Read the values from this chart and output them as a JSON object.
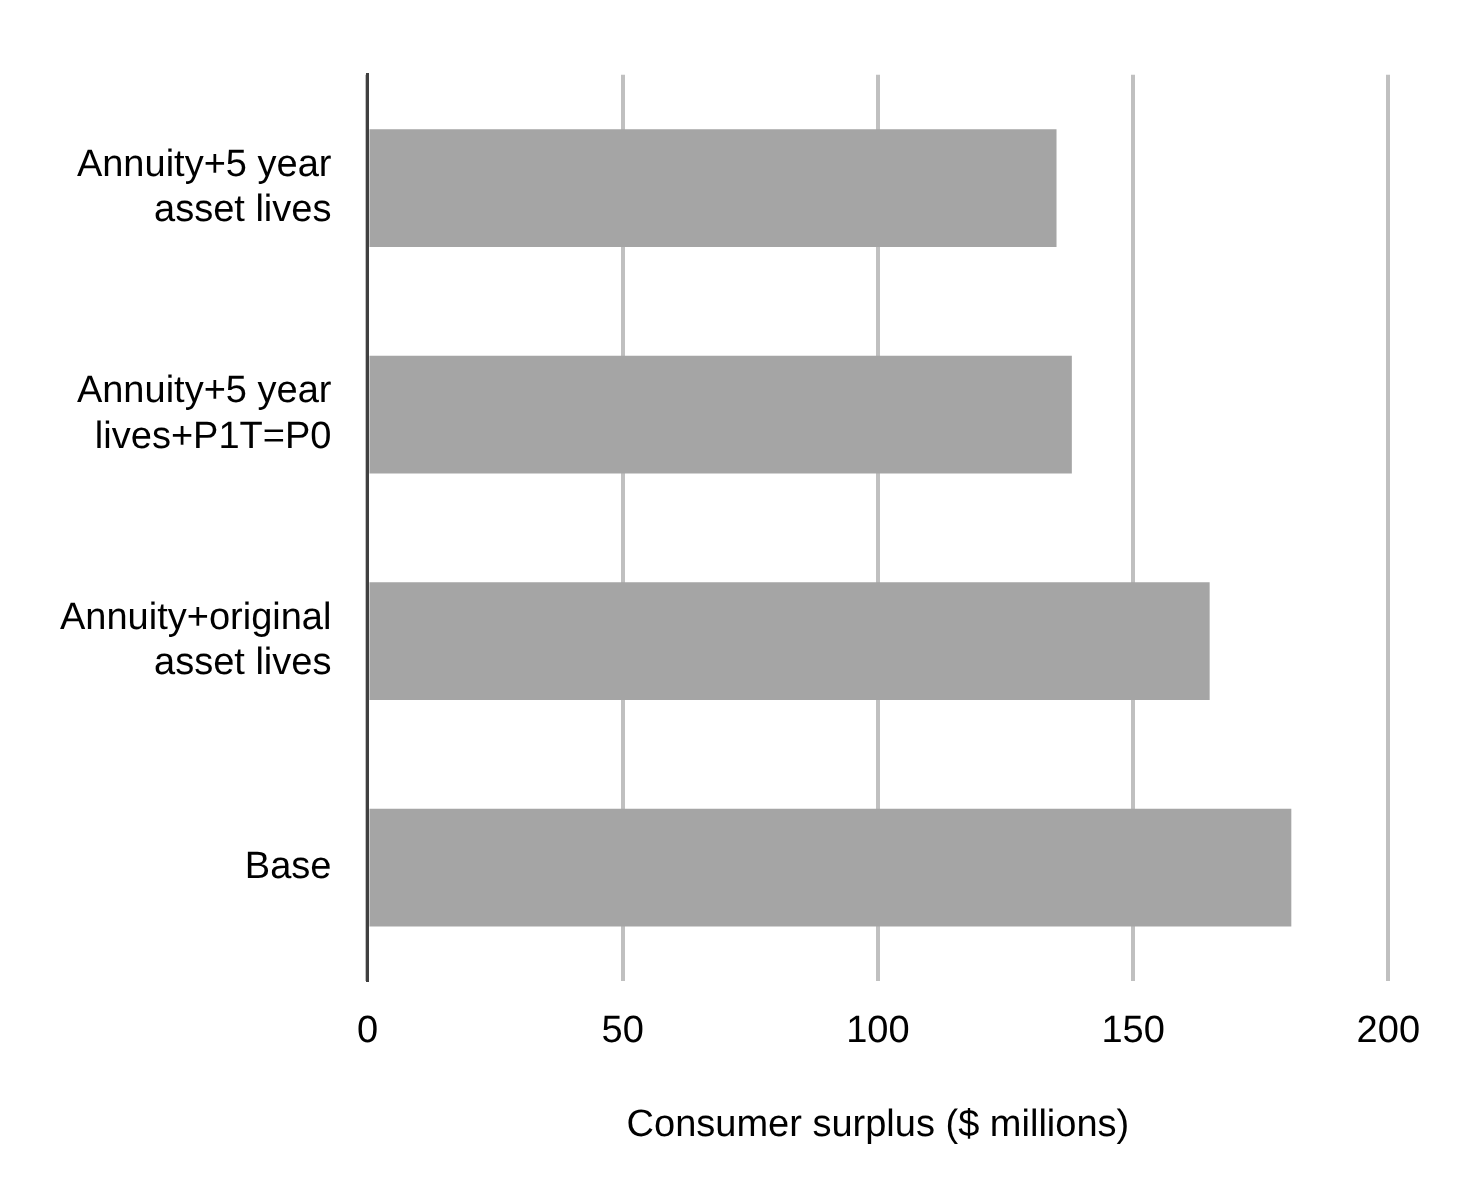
{
  "chart_data": {
    "type": "bar",
    "orientation": "horizontal",
    "xlabel": "Consumer surplus ($ millions)",
    "categories": [
      "Annuity+5 year asset lives",
      "Annuity+5 year lives+P1T=P0",
      "Annuity+original asset lives",
      "Base"
    ],
    "values": [
      135,
      138,
      165,
      181
    ],
    "color": "#a5a5a5",
    "xlim": [
      0,
      200
    ],
    "xticks": [
      0,
      50,
      100,
      150,
      200
    ],
    "grid": "x",
    "legend": false
  }
}
